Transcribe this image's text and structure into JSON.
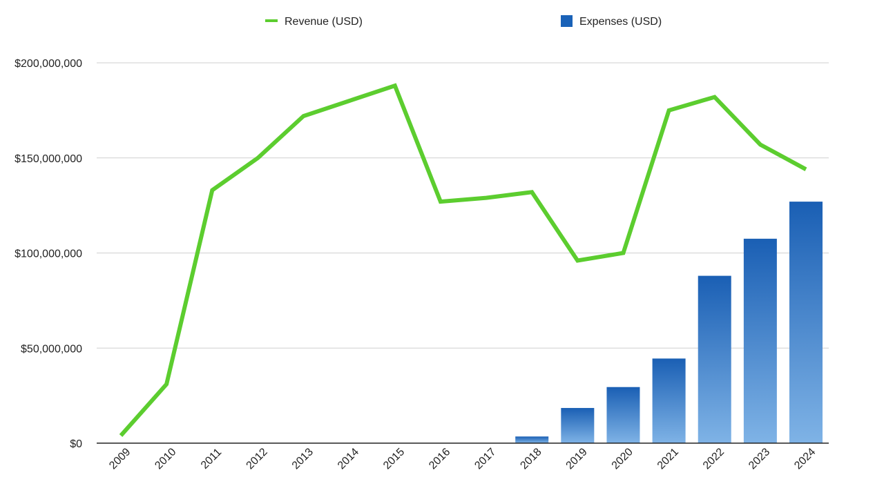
{
  "chart_data": {
    "type": "bar",
    "title": "",
    "xlabel": "",
    "ylabel": "",
    "ylim": [
      0,
      200000000
    ],
    "y_ticks": [
      "$0",
      "$50,000,000",
      "$100,000,000",
      "$150,000,000",
      "$200,000,000"
    ],
    "y_tick_values": [
      0,
      50000000,
      100000000,
      150000000,
      200000000
    ],
    "grid": true,
    "legend_position": "top",
    "categories": [
      "2009",
      "2010",
      "2011",
      "2012",
      "2013",
      "2014",
      "2015",
      "2016",
      "2017",
      "2018",
      "2019",
      "2020",
      "2021",
      "2022",
      "2023",
      "2024"
    ],
    "series": [
      {
        "name": "Revenue (USD)",
        "kind": "line",
        "color": "#5ccd2f",
        "values": [
          4000000,
          31000000,
          133000000,
          150000000,
          172000000,
          180000000,
          188000000,
          127000000,
          129000000,
          132000000,
          96000000,
          100000000,
          175000000,
          182000000,
          157000000,
          144000000
        ]
      },
      {
        "name": "Expenses (USD)",
        "kind": "bar",
        "color": "#1a62b8",
        "color_light": "#7fb2e6",
        "values": [
          0,
          0,
          0,
          0,
          0,
          0,
          0,
          0,
          0,
          3500000,
          18500000,
          29500000,
          44500000,
          88000000,
          107500000,
          127000000
        ]
      }
    ]
  }
}
